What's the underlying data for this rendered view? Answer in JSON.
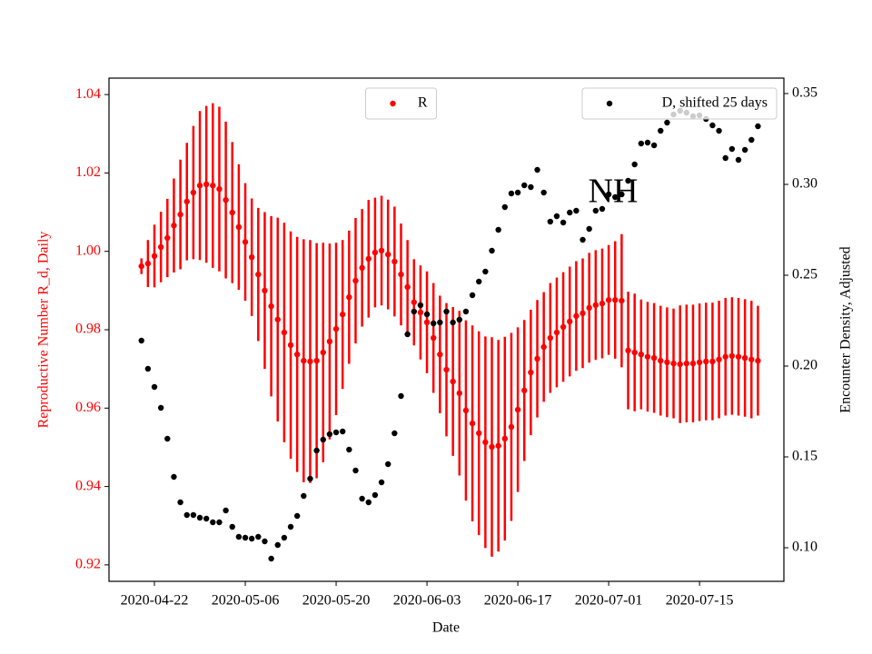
{
  "chart_data": {
    "type": "scatter",
    "annotation": "NH",
    "xlabel": "Date",
    "ylabel": "Reproductive Number R_d, Daily",
    "y2label": "Encounter Density, Adjusted",
    "x": [
      "2020-04-20",
      "2020-04-21",
      "2020-04-22",
      "2020-04-23",
      "2020-04-24",
      "2020-04-25",
      "2020-04-26",
      "2020-04-27",
      "2020-04-28",
      "2020-04-29",
      "2020-04-30",
      "2020-05-01",
      "2020-05-02",
      "2020-05-03",
      "2020-05-04",
      "2020-05-05",
      "2020-05-06",
      "2020-05-07",
      "2020-05-08",
      "2020-05-09",
      "2020-05-10",
      "2020-05-11",
      "2020-05-12",
      "2020-05-13",
      "2020-05-14",
      "2020-05-15",
      "2020-05-16",
      "2020-05-17",
      "2020-05-18",
      "2020-05-19",
      "2020-05-20",
      "2020-05-21",
      "2020-05-22",
      "2020-05-23",
      "2020-05-24",
      "2020-05-25",
      "2020-05-26",
      "2020-05-27",
      "2020-05-28",
      "2020-05-29",
      "2020-05-30",
      "2020-05-31",
      "2020-06-01",
      "2020-06-02",
      "2020-06-03",
      "2020-06-04",
      "2020-06-05",
      "2020-06-06",
      "2020-06-07",
      "2020-06-08",
      "2020-06-09",
      "2020-06-10",
      "2020-06-11",
      "2020-06-12",
      "2020-06-13",
      "2020-06-14",
      "2020-06-15",
      "2020-06-16",
      "2020-06-17",
      "2020-06-18",
      "2020-06-19",
      "2020-06-20",
      "2020-06-21",
      "2020-06-22",
      "2020-06-23",
      "2020-06-24",
      "2020-06-25",
      "2020-06-26",
      "2020-06-27",
      "2020-06-28",
      "2020-06-29",
      "2020-06-30",
      "2020-07-01",
      "2020-07-02",
      "2020-07-03",
      "2020-07-04",
      "2020-07-05",
      "2020-07-06",
      "2020-07-07",
      "2020-07-08",
      "2020-07-09",
      "2020-07-10",
      "2020-07-11",
      "2020-07-12",
      "2020-07-13",
      "2020-07-14",
      "2020-07-15",
      "2020-07-16",
      "2020-07-17",
      "2020-07-18",
      "2020-07-19",
      "2020-07-20",
      "2020-07-21",
      "2020-07-22",
      "2020-07-23",
      "2020-07-24"
    ],
    "series": [
      {
        "name": "R",
        "color": "red",
        "axis": "y",
        "legend": "upper center",
        "values": [
          0.9962,
          0.9969,
          0.9988,
          1.0011,
          1.0034,
          1.0066,
          1.0094,
          1.0127,
          1.015,
          1.0168,
          1.0171,
          1.0168,
          1.0159,
          1.0131,
          1.0099,
          1.0062,
          1.0024,
          0.9985,
          0.9941,
          0.99,
          0.986,
          0.9826,
          0.9793,
          0.9761,
          0.9737,
          0.9721,
          0.9719,
          0.9721,
          0.9742,
          0.977,
          0.9802,
          0.9839,
          0.9883,
          0.9925,
          0.9958,
          0.9981,
          0.9997,
          1.0002,
          0.9992,
          0.9974,
          0.9941,
          0.9909,
          0.987,
          0.9844,
          0.9819,
          0.9779,
          0.9737,
          0.9698,
          0.9668,
          0.9638,
          0.9594,
          0.9561,
          0.9536,
          0.9513,
          0.9501,
          0.9504,
          0.9522,
          0.9552,
          0.9596,
          0.9645,
          0.9691,
          0.9726,
          0.9756,
          0.9779,
          0.9793,
          0.9807,
          0.9821,
          0.9835,
          0.9842,
          0.9856,
          0.9863,
          0.9867,
          0.9876,
          0.9876,
          0.9874,
          0.9747,
          0.9742,
          0.9737,
          0.9731,
          0.9728,
          0.9721,
          0.9717,
          0.9714,
          0.9712,
          0.9714,
          0.9714,
          0.9717,
          0.9719,
          0.9719,
          0.9724,
          0.9731,
          0.9733,
          0.9731,
          0.9728,
          0.9724,
          0.9721
        ],
        "errors": [
          0.002,
          0.006,
          0.008,
          0.009,
          0.01,
          0.012,
          0.014,
          0.015,
          0.017,
          0.019,
          0.02,
          0.021,
          0.021,
          0.02,
          0.018,
          0.016,
          0.015,
          0.015,
          0.017,
          0.02,
          0.023,
          0.026,
          0.028,
          0.029,
          0.03,
          0.031,
          0.031,
          0.03,
          0.028,
          0.025,
          0.022,
          0.019,
          0.017,
          0.016,
          0.015,
          0.015,
          0.014,
          0.014,
          0.014,
          0.014,
          0.013,
          0.012,
          0.011,
          0.012,
          0.013,
          0.014,
          0.015,
          0.017,
          0.019,
          0.021,
          0.023,
          0.025,
          0.026,
          0.027,
          0.028,
          0.027,
          0.026,
          0.024,
          0.021,
          0.018,
          0.016,
          0.015,
          0.014,
          0.014,
          0.014,
          0.014,
          0.014,
          0.014,
          0.014,
          0.014,
          0.014,
          0.014,
          0.014,
          0.015,
          0.017,
          0.015,
          0.015,
          0.014,
          0.014,
          0.014,
          0.014,
          0.014,
          0.014,
          0.015,
          0.015,
          0.015,
          0.015,
          0.015,
          0.015,
          0.015,
          0.015,
          0.015,
          0.015,
          0.015,
          0.015,
          0.014
        ]
      },
      {
        "name": "D, shifted 25 days",
        "color": "black",
        "axis": "y2",
        "legend": "upper right",
        "values": [
          0.214,
          0.1985,
          0.1885,
          0.177,
          0.16,
          0.139,
          0.125,
          0.118,
          0.118,
          0.1165,
          0.116,
          0.114,
          0.114,
          0.1205,
          0.1115,
          0.106,
          0.1055,
          0.105,
          0.106,
          0.1035,
          0.094,
          0.1015,
          0.1055,
          0.1115,
          0.1175,
          0.1285,
          0.138,
          0.1535,
          0.1595,
          0.1625,
          0.1635,
          0.164,
          0.154,
          0.1425,
          0.127,
          0.125,
          0.129,
          0.136,
          0.146,
          0.163,
          0.1835,
          0.2175,
          0.23,
          0.2335,
          0.2285,
          0.2235,
          0.224,
          0.23,
          0.224,
          0.2255,
          0.23,
          0.239,
          0.2465,
          0.252,
          0.2635,
          0.275,
          0.2875,
          0.295,
          0.2955,
          0.2995,
          0.2985,
          0.308,
          0.2955,
          0.2795,
          0.2825,
          0.279,
          0.2845,
          0.2855,
          0.2695,
          0.2755,
          0.2855,
          0.2865,
          0.2945,
          0.293,
          0.2945,
          0.302,
          0.311,
          0.3225,
          0.323,
          0.3215,
          0.3295,
          0.334,
          0.3385,
          0.3405,
          0.3395,
          0.3375,
          0.338,
          0.336,
          0.3325,
          0.3295,
          0.3145,
          0.3195,
          0.3135,
          0.319,
          0.3245,
          0.332
        ]
      }
    ],
    "xlim": [
      "2020-04-15",
      "2020-07-28"
    ],
    "xticks": [
      "2020-04-22",
      "2020-05-06",
      "2020-05-20",
      "2020-06-03",
      "2020-06-17",
      "2020-07-01",
      "2020-07-15"
    ],
    "ylim": [
      0.9158,
      1.0442
    ],
    "yticks": [
      0.92,
      0.94,
      0.96,
      0.98,
      {
        "value": 1.0,
        "label": "1.00"
      },
      1.02,
      1.04
    ],
    "y2lim": [
      0.0815,
      0.3585
    ],
    "y2ticks": [
      {
        "value": 0.1,
        "label": "0.10"
      },
      0.15,
      {
        "value": 0.2,
        "label": "0.20"
      },
      0.25,
      {
        "value": 0.3,
        "label": "0.30"
      },
      0.35
    ]
  }
}
